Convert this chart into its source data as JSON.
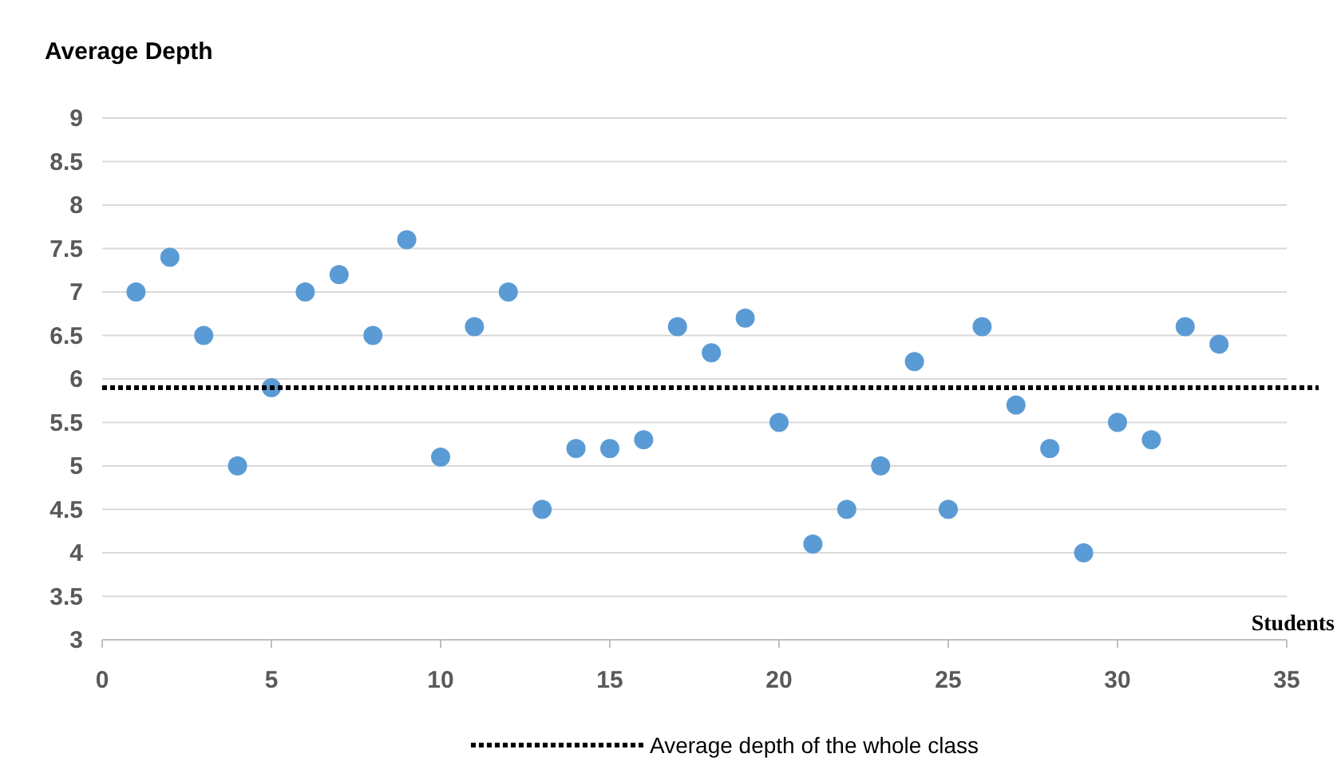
{
  "chart_data": {
    "type": "scatter",
    "ylabel": "Average  Depth",
    "xlabel": "Students",
    "x": [
      1,
      2,
      3,
      4,
      5,
      6,
      7,
      8,
      9,
      10,
      11,
      12,
      13,
      14,
      15,
      16,
      17,
      18,
      19,
      20,
      21,
      22,
      23,
      24,
      25,
      26,
      27,
      28,
      29,
      30,
      31,
      32,
      33
    ],
    "series": [
      {
        "color": "#5b9bd5",
        "values": [
          7.0,
          7.4,
          6.5,
          5.0,
          5.9,
          7.0,
          7.2,
          6.5,
          7.6,
          5.1,
          6.6,
          7.0,
          4.5,
          5.2,
          5.2,
          5.3,
          6.6,
          6.3,
          6.7,
          5.5,
          4.1,
          4.5,
          5.0,
          6.2,
          4.5,
          6.6,
          5.7,
          5.2,
          4.0,
          5.5,
          5.3,
          6.6,
          6.4
        ]
      }
    ],
    "xlim": [
      0,
      35
    ],
    "xticks": [
      0,
      5,
      10,
      15,
      20,
      25,
      30,
      35
    ],
    "ylim": [
      3,
      9
    ],
    "yticks": [
      3,
      3.5,
      4,
      4.5,
      5,
      5.5,
      6,
      6.5,
      7,
      7.5,
      8,
      8.5,
      9
    ],
    "ref_lines": [
      {
        "axis": "y",
        "value": 5.9,
        "label": "Average depth of the whole class",
        "color": "#000000",
        "line_style": "dotted"
      }
    ],
    "grid": "y",
    "marker": "circle",
    "legend": "bottom"
  }
}
